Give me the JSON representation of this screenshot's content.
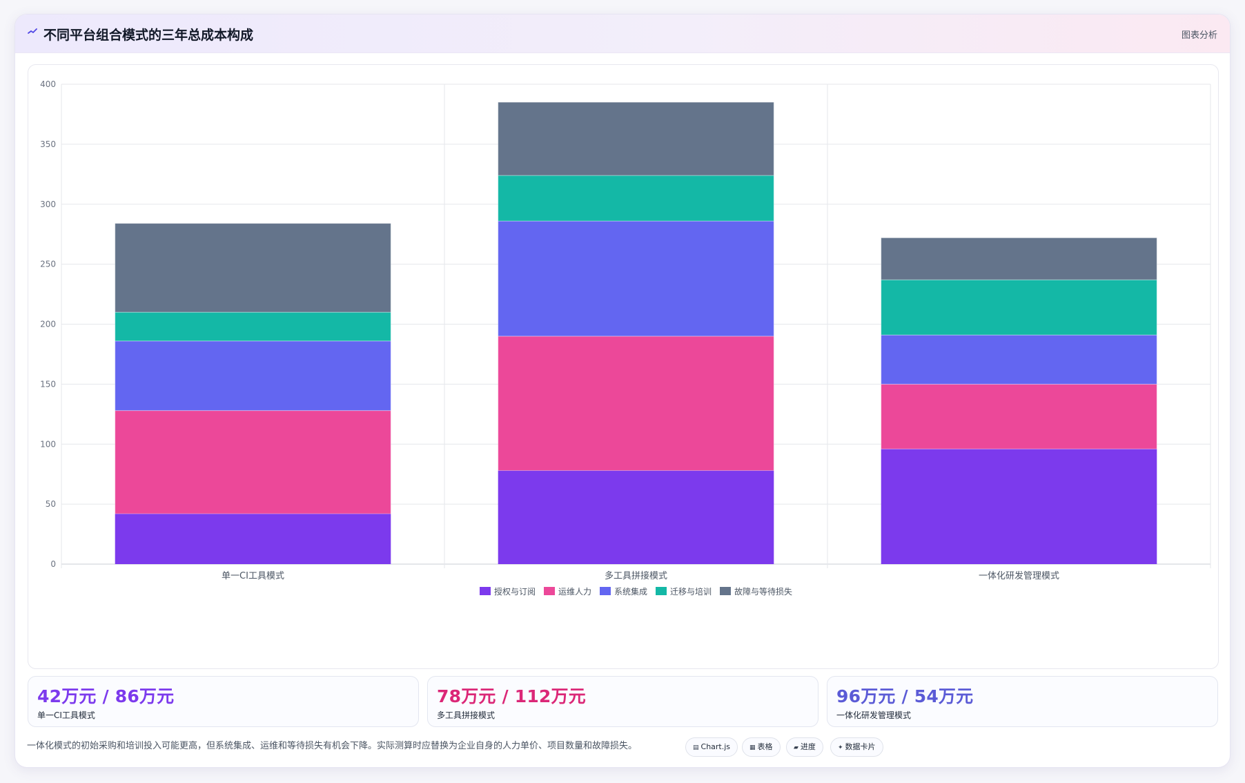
{
  "header": {
    "title": "不同平台组合模式的三年总成本构成",
    "link_label": "图表分析",
    "title_icon": "chart-line-icon"
  },
  "colors": {
    "license": "#7c3aed",
    "ops": "#ec4899",
    "integration": "#6366f1",
    "migration": "#14b8a6",
    "downtime": "#64748b"
  },
  "chart_data": {
    "type": "bar",
    "stacked": true,
    "categories": [
      "单一CI工具模式",
      "多工具拼接模式",
      "一体化研发管理模式"
    ],
    "series": [
      {
        "name": "授权与订阅",
        "color": "#7c3aed",
        "values": [
          42,
          78,
          96
        ]
      },
      {
        "name": "运维人力",
        "color": "#ec4899",
        "values": [
          86,
          112,
          54
        ]
      },
      {
        "name": "系统集成",
        "color": "#6366f1",
        "values": [
          58,
          96,
          41
        ]
      },
      {
        "name": "迁移与培训",
        "color": "#14b8a6",
        "values": [
          24,
          38,
          46
        ]
      },
      {
        "name": "故障与等待损失",
        "color": "#64748b",
        "values": [
          74,
          61,
          35
        ]
      }
    ],
    "ylim": [
      0,
      400
    ],
    "yticks": [
      0,
      50,
      100,
      150,
      200,
      250,
      300,
      350,
      400
    ],
    "grid": true,
    "legend": "bottom"
  },
  "stats": [
    {
      "value": "42万元 / 86万元",
      "label": "单一CI工具模式",
      "color": "#7c3aed"
    },
    {
      "value": "78万元 / 112万元",
      "label": "多工具拼接模式",
      "color": "#db2777"
    },
    {
      "value": "96万元 / 54万元",
      "label": "一体化研发管理模式",
      "color": "#5b5bd6"
    }
  ],
  "footnote": "一体化模式的初始采购和培训投入可能更高，但系统集成、运维和等待损失有机会下降。实际测算时应替换为企业自身的人力单价、项目数量和故障损失。",
  "chips": [
    {
      "label": "Chart.js",
      "icon": "chart-icon",
      "glyph": "▤"
    },
    {
      "label": "表格",
      "icon": "table-icon",
      "glyph": "▦"
    },
    {
      "label": "进度",
      "icon": "progress-icon",
      "glyph": "▰"
    },
    {
      "label": "数据卡片",
      "icon": "sparkle-icon",
      "glyph": "✦"
    }
  ]
}
